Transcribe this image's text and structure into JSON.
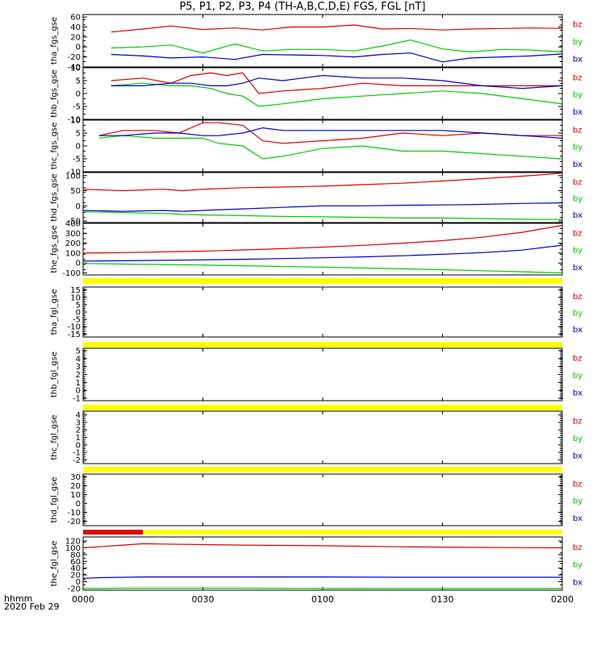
{
  "title": "P5, P1, P2, P3, P4 (TH-A,B,C,D,E) FGS, FGL [nT]",
  "x_axis": {
    "unit_label": "hhmm",
    "date_label": "2020 Feb 29",
    "ticks": [
      "0000",
      "0030",
      "0100",
      "0130",
      "0200"
    ]
  },
  "colors": {
    "bz": "#dd0000",
    "by": "#00cc00",
    "bx": "#0000cc",
    "bar_yellow": "#ffff00",
    "bar_red": "#dd0000"
  },
  "chart_data": [
    {
      "type": "line",
      "panel": "tha_fgs_gse",
      "ylabel": "tha_fgs_gse",
      "ylim": [
        -40,
        65
      ],
      "yticks": [
        "60",
        "40",
        "20",
        "0",
        "-20",
        "-40"
      ],
      "legend": [
        "bz",
        "by",
        "bx"
      ],
      "x_range_minutes": [
        0,
        120
      ],
      "series": [
        {
          "name": "bz",
          "x": [
            7,
            15,
            22,
            30,
            38,
            45,
            52,
            60,
            68,
            75,
            82,
            90,
            97,
            105,
            112,
            120
          ],
          "y": [
            30,
            36,
            42,
            35,
            38,
            34,
            40,
            40,
            44,
            36,
            37,
            34,
            36,
            37,
            38,
            37
          ]
        },
        {
          "name": "by",
          "x": [
            7,
            15,
            22,
            30,
            38,
            45,
            52,
            60,
            68,
            75,
            82,
            90,
            97,
            105,
            112,
            120
          ],
          "y": [
            -2,
            0,
            4,
            -12,
            6,
            -8,
            -5,
            -5,
            -8,
            2,
            14,
            -4,
            -10,
            -5,
            -6,
            -10
          ]
        },
        {
          "name": "bx",
          "x": [
            7,
            15,
            22,
            30,
            38,
            45,
            52,
            60,
            68,
            75,
            82,
            90,
            97,
            105,
            112,
            120
          ],
          "y": [
            -15,
            -18,
            -22,
            -20,
            -25,
            -15,
            -16,
            -17,
            -20,
            -15,
            -12,
            -30,
            -22,
            -20,
            -18,
            -14
          ]
        }
      ]
    },
    {
      "type": "line",
      "panel": "thb_fgs_gse",
      "ylabel": "thb_fgs_gse",
      "ylim": [
        -10,
        10
      ],
      "yticks": [
        "10",
        "5",
        "0",
        "-5",
        "-10"
      ],
      "legend": [
        "bz",
        "by",
        "bx"
      ],
      "x_range_minutes": [
        0,
        120
      ],
      "series": [
        {
          "name": "bz",
          "x": [
            7,
            15,
            22,
            27,
            32,
            36,
            40,
            44,
            50,
            60,
            70,
            80,
            90,
            100,
            110,
            120
          ],
          "y": [
            5,
            6,
            4,
            7,
            8,
            7,
            8,
            0,
            1,
            2,
            4,
            3,
            3,
            3,
            3,
            3
          ]
        },
        {
          "name": "by",
          "x": [
            7,
            15,
            22,
            27,
            32,
            36,
            40,
            44,
            50,
            60,
            70,
            80,
            90,
            100,
            110,
            120
          ],
          "y": [
            3,
            4,
            3,
            3,
            2,
            0,
            -1,
            -5,
            -4,
            -2,
            -1,
            0,
            1,
            0,
            -2,
            -4
          ]
        },
        {
          "name": "bx",
          "x": [
            7,
            15,
            22,
            27,
            32,
            36,
            40,
            44,
            50,
            60,
            70,
            80,
            90,
            100,
            110,
            120
          ],
          "y": [
            3,
            3,
            4,
            4,
            3,
            3,
            4,
            6,
            5,
            7,
            6,
            6,
            5,
            3,
            2,
            3
          ]
        }
      ]
    },
    {
      "type": "line",
      "panel": "thc_fgs_gse",
      "ylabel": "thc_fgs_gse",
      "ylim": [
        -10,
        10
      ],
      "yticks": [
        "10",
        "5",
        "0",
        "-5",
        "-10"
      ],
      "legend": [
        "bz",
        "by",
        "bx"
      ],
      "x_range_minutes": [
        0,
        120
      ],
      "series": [
        {
          "name": "bz",
          "x": [
            4,
            10,
            18,
            24,
            30,
            34,
            40,
            45,
            50,
            60,
            70,
            80,
            90,
            100,
            110,
            120
          ],
          "y": [
            4,
            6,
            6,
            5,
            9,
            9,
            8,
            2,
            1,
            2,
            3,
            5,
            4,
            5,
            4,
            4
          ]
        },
        {
          "name": "by",
          "x": [
            4,
            10,
            18,
            24,
            30,
            34,
            40,
            45,
            50,
            60,
            70,
            80,
            90,
            100,
            110,
            120
          ],
          "y": [
            3,
            4,
            3,
            3,
            3,
            1,
            0,
            -5,
            -4,
            -1,
            0,
            -2,
            -2,
            -3,
            -4,
            -5
          ]
        },
        {
          "name": "bx",
          "x": [
            4,
            10,
            18,
            24,
            30,
            34,
            40,
            45,
            50,
            60,
            70,
            80,
            90,
            100,
            110,
            120
          ],
          "y": [
            4,
            4,
            5,
            5,
            4,
            4,
            5,
            7,
            6,
            6,
            6,
            6,
            6,
            5,
            4,
            3
          ]
        }
      ]
    },
    {
      "type": "line",
      "panel": "thd_fgs_gse",
      "ylabel": "thd_fgs_gse",
      "ylim": [
        -55,
        110
      ],
      "yticks": [
        "100",
        "50",
        "0",
        "-50"
      ],
      "legend": [
        "bz",
        "by",
        "bx"
      ],
      "x_range_minutes": [
        0,
        120
      ],
      "series": [
        {
          "name": "bz",
          "x": [
            0,
            10,
            20,
            25,
            30,
            40,
            50,
            60,
            70,
            80,
            90,
            100,
            110,
            120
          ],
          "y": [
            55,
            50,
            55,
            50,
            55,
            60,
            62,
            65,
            70,
            75,
            82,
            90,
            98,
            108
          ]
        },
        {
          "name": "by",
          "x": [
            0,
            10,
            20,
            25,
            30,
            40,
            50,
            60,
            70,
            80,
            90,
            100,
            110,
            120
          ],
          "y": [
            -20,
            -22,
            -25,
            -28,
            -30,
            -32,
            -35,
            -36,
            -38,
            -40,
            -40,
            -42,
            -44,
            -45
          ]
        },
        {
          "name": "bx",
          "x": [
            0,
            10,
            20,
            25,
            30,
            40,
            50,
            60,
            70,
            80,
            90,
            100,
            110,
            120
          ],
          "y": [
            -15,
            -18,
            -15,
            -18,
            -15,
            -10,
            -5,
            0,
            0,
            2,
            3,
            5,
            8,
            10
          ]
        }
      ]
    },
    {
      "type": "line",
      "panel": "the_fgs_gse",
      "ylabel": "the_fgs_gse",
      "ylim": [
        -120,
        400
      ],
      "yticks": [
        "400",
        "300",
        "200",
        "100",
        "0",
        "-100"
      ],
      "legend": [
        "bz",
        "by",
        "bx"
      ],
      "x_range_minutes": [
        0,
        120
      ],
      "series": [
        {
          "name": "bz",
          "x": [
            0,
            10,
            20,
            30,
            40,
            50,
            60,
            70,
            80,
            90,
            100,
            110,
            120
          ],
          "y": [
            100,
            105,
            112,
            120,
            132,
            145,
            160,
            178,
            200,
            225,
            260,
            310,
            380
          ]
        },
        {
          "name": "by",
          "x": [
            0,
            10,
            20,
            30,
            40,
            50,
            60,
            70,
            80,
            90,
            100,
            110,
            120
          ],
          "y": [
            -5,
            -10,
            -15,
            -20,
            -27,
            -35,
            -42,
            -50,
            -58,
            -67,
            -78,
            -88,
            -100
          ]
        },
        {
          "name": "bx",
          "x": [
            0,
            10,
            20,
            30,
            40,
            50,
            60,
            70,
            80,
            90,
            100,
            110,
            120
          ],
          "y": [
            20,
            23,
            27,
            32,
            38,
            45,
            53,
            62,
            73,
            88,
            105,
            130,
            180
          ]
        }
      ]
    },
    {
      "type": "line",
      "panel": "tha_fgl_gse",
      "ylabel": "tha_fgl_gse",
      "ylim": [
        -17,
        17
      ],
      "yticks": [
        "15",
        "10",
        "5",
        "0",
        "-5",
        "-10",
        "-15"
      ],
      "legend": [
        "bz",
        "by",
        "bx"
      ],
      "series": []
    },
    {
      "type": "line",
      "panel": "thb_fgl_gse",
      "ylabel": "thb_fgl_gse",
      "ylim": [
        -1.3,
        5.3
      ],
      "yticks": [
        "5",
        "4",
        "3",
        "2",
        "1",
        "0",
        "-1"
      ],
      "legend": [
        "bz",
        "by",
        "bx"
      ],
      "series": []
    },
    {
      "type": "line",
      "panel": "thc_fgl_gse",
      "ylabel": "thc_fgl_gse",
      "ylim": [
        -2.5,
        4.5
      ],
      "yticks": [
        "4",
        "3",
        "2",
        "1",
        "0",
        "-1",
        "-2"
      ],
      "legend": [
        "bz",
        "by",
        "bx"
      ],
      "series": []
    },
    {
      "type": "line",
      "panel": "thd_fgl_gse",
      "ylabel": "thd_fgl_gse",
      "ylim": [
        -25,
        33
      ],
      "yticks": [
        "30",
        "20",
        "10",
        "0",
        "-10",
        "-20"
      ],
      "legend": [
        "bz",
        "by",
        "bx"
      ],
      "series": []
    },
    {
      "type": "line",
      "panel": "the_fgl_gse",
      "ylabel": "the_fgl_gse",
      "ylim": [
        -25,
        132
      ],
      "yticks": [
        "120",
        "100",
        "80",
        "60",
        "40",
        "20",
        "0",
        "-20"
      ],
      "legend": [
        "bz",
        "by",
        "bx"
      ],
      "x_range_minutes": [
        0,
        120
      ],
      "series": [
        {
          "name": "bz",
          "x": [
            0,
            5,
            10,
            15,
            20,
            40,
            60,
            80,
            100,
            120
          ],
          "y": [
            100,
            104,
            108,
            112,
            111,
            108,
            106,
            103,
            101,
            100
          ]
        },
        {
          "name": "by",
          "x": [
            0,
            5,
            10,
            15,
            20,
            40,
            60,
            80,
            100,
            120
          ],
          "y": [
            -20,
            -20,
            -19,
            -19,
            -19,
            -19,
            -20,
            -20,
            -20,
            -20
          ]
        },
        {
          "name": "bx",
          "x": [
            0,
            5,
            10,
            15,
            20,
            40,
            60,
            80,
            100,
            120
          ],
          "y": [
            10,
            12,
            13,
            14,
            14,
            14,
            14,
            13,
            13,
            13
          ]
        }
      ]
    }
  ],
  "status_bars": [
    {
      "name": "bar-before-tha-fgl",
      "segments": [
        {
          "color": "yellow",
          "from": 0,
          "to": 120
        }
      ]
    },
    {
      "name": "bar-before-thb-fgl",
      "segments": [
        {
          "color": "yellow",
          "from": 0,
          "to": 120
        }
      ]
    },
    {
      "name": "bar-before-thc-fgl",
      "segments": [
        {
          "color": "yellow",
          "from": 0,
          "to": 120
        }
      ]
    },
    {
      "name": "bar-before-thd-fgl",
      "segments": [
        {
          "color": "yellow",
          "from": 0,
          "to": 120
        }
      ]
    },
    {
      "name": "bar-before-the-fgl",
      "segments": [
        {
          "color": "red",
          "from": 0,
          "to": 15
        },
        {
          "color": "yellow",
          "from": 15,
          "to": 120
        }
      ]
    }
  ]
}
